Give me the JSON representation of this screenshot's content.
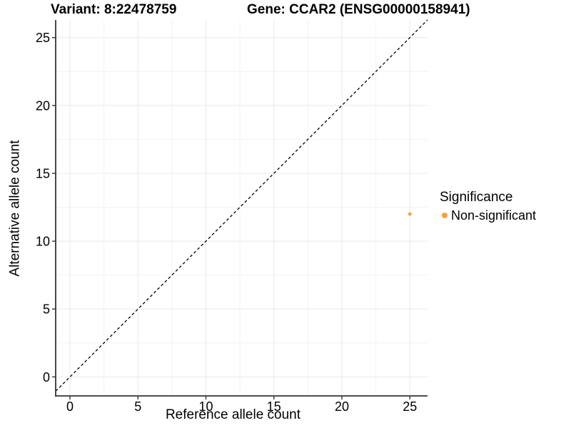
{
  "chart_data": {
    "type": "scatter",
    "title_left": "Variant: 8:22478759",
    "title_right": "Gene: CCAR2 (ENSG00000158941)",
    "xlabel": "Reference allele count",
    "ylabel": "Alternative allele count",
    "xlim": [
      -1.05,
      26.3
    ],
    "ylim": [
      -1.4,
      26.3
    ],
    "x_ticks": [
      0,
      5,
      10,
      15,
      20,
      25
    ],
    "y_ticks": [
      0,
      5,
      10,
      15,
      20,
      25
    ],
    "x_minor": [
      2.5,
      7.5,
      12.5,
      17.5,
      22.5
    ],
    "y_minor": [
      2.5,
      7.5,
      12.5,
      17.5,
      22.5
    ],
    "grid": "major+minor",
    "identity_line": {
      "slope": 1,
      "intercept": 0,
      "style": "dashed",
      "color": "#000000"
    },
    "series": [
      {
        "name": "Non-significant",
        "color": "#F8A03C",
        "points": [
          {
            "x": 25,
            "y": 12
          }
        ]
      }
    ],
    "legend": {
      "title": "Significance",
      "position": "right",
      "items": [
        {
          "label": "Non-significant",
          "color": "#F8A03C"
        }
      ]
    },
    "colors": {
      "axis": "#343434",
      "grid_major": "#E8E8E8",
      "grid_minor": "#F2F2F2",
      "background": "#FFFFFF",
      "tick_label": "#000000"
    }
  }
}
